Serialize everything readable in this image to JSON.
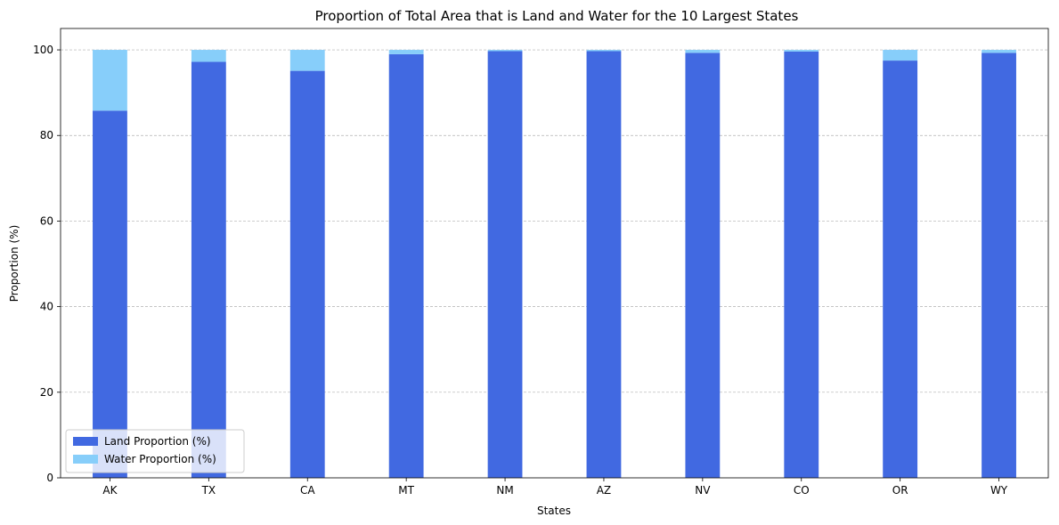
{
  "chart_data": {
    "type": "bar",
    "stacked": true,
    "title": "Proportion of Total Area that is Land and Water for the 10 Largest States",
    "xlabel": "States",
    "ylabel": "Proportion (%)",
    "categories": [
      "AK",
      "TX",
      "CA",
      "MT",
      "NM",
      "AZ",
      "NV",
      "CO",
      "OR",
      "WY"
    ],
    "series": [
      {
        "name": "Land Proportion (%)",
        "color": "#4169E1",
        "values": [
          85.8,
          97.2,
          95.1,
          99.0,
          99.7,
          99.7,
          99.3,
          99.6,
          97.5,
          99.3
        ]
      },
      {
        "name": "Water Proportion (%)",
        "color": "#87CEFA",
        "values": [
          14.2,
          2.8,
          4.9,
          1.0,
          0.3,
          0.3,
          0.7,
          0.4,
          2.5,
          0.7
        ]
      }
    ],
    "ylim": [
      0,
      105
    ],
    "yticks": [
      0,
      20,
      40,
      60,
      80,
      100
    ],
    "grid": "y-dashed",
    "legend_position": "lower-left"
  }
}
